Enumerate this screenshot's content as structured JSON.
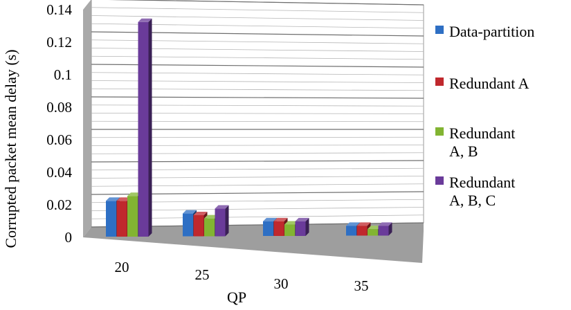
{
  "chart_data": {
    "type": "bar",
    "title": "",
    "xlabel": "QP",
    "ylabel": "Corrupted packet mean delay (s)",
    "ylim": [
      0,
      0.14
    ],
    "yticks": [
      "0",
      "0.02",
      "0.04",
      "0.06",
      "0.08",
      "0.1",
      "0.12",
      "0.14"
    ],
    "categories": [
      "20",
      "25",
      "30",
      "35"
    ],
    "series": [
      {
        "name": "Data-partition",
        "values": [
          0.022,
          0.014,
          0.009,
          0.006
        ]
      },
      {
        "name": "Redundant A",
        "values": [
          0.022,
          0.013,
          0.009,
          0.006
        ]
      },
      {
        "name": "Redundant A, B",
        "values": [
          0.025,
          0.011,
          0.007,
          0.004
        ]
      },
      {
        "name": "Redundant A, B, C",
        "values": [
          0.132,
          0.017,
          0.009,
          0.006
        ]
      }
    ],
    "colors": [
      "#2e6fc4",
      "#c0282d",
      "#82b432",
      "#6a3b9a"
    ],
    "legend_lines": [
      [
        "Data-partition"
      ],
      [
        "Redundant A"
      ],
      [
        "Redundant",
        "A, B"
      ],
      [
        "Redundant",
        "A, B, C"
      ]
    ],
    "grid": true,
    "legend_position": "right",
    "projection": "3d"
  }
}
